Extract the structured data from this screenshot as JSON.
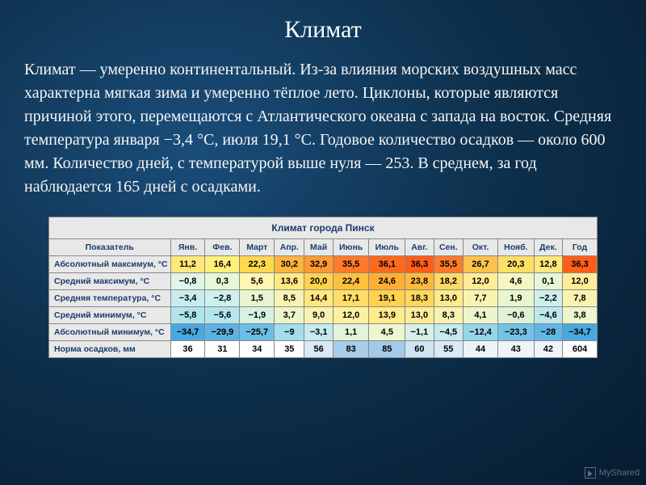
{
  "title": "Климат",
  "paragraph": "Климат — умеренно континентальный. Из-за влияния морских воздушных масс характерна мягкая зима и умеренно тёплое лето. Циклоны, которые являются причиной этого, перемещаются с Атлантического океана с запада на восток. Средняя температура января −3,4 °C, июля 19,1 °C. Годовое количество осадков — около 600 мм. Количество дней, с температурой выше нуля — 253. В среднем, за год наблюдается 165 дней с осадками.",
  "table": {
    "caption": "Климат города Пинск",
    "columns": [
      "Показатель",
      "Янв.",
      "Фев.",
      "Март",
      "Апр.",
      "Май",
      "Июнь",
      "Июль",
      "Авг.",
      "Сен.",
      "Окт.",
      "Нояб.",
      "Дек.",
      "Год"
    ],
    "rows": [
      {
        "label": "Абсолютный максимум, °C",
        "values": [
          "11,2",
          "16,4",
          "22,3",
          "30,2",
          "32,9",
          "35,5",
          "36,1",
          "36,3",
          "35,5",
          "26,7",
          "20,3",
          "12,8",
          "36,3"
        ],
        "colors": [
          "#ffe97a",
          "#fff07a",
          "#ffd94d",
          "#ffb43d",
          "#ff9a33",
          "#ff7a29",
          "#ff691f",
          "#ff5e19",
          "#ff7a29",
          "#ffc34d",
          "#ffdf66",
          "#ffe97a",
          "#ff5e19"
        ]
      },
      {
        "label": "Средний максимум, °C",
        "values": [
          "−0,8",
          "0,3",
          "5,6",
          "13,6",
          "20,0",
          "22,4",
          "24,6",
          "23,8",
          "18,2",
          "12,0",
          "4,6",
          "0,1",
          "12,0"
        ],
        "colors": [
          "#dff5e8",
          "#e6f7d8",
          "#fff7b0",
          "#ffe880",
          "#ffd14d",
          "#ffc13d",
          "#ffb033",
          "#ffb83d",
          "#ffd966",
          "#ffec99",
          "#f4f7c4",
          "#e6f7d8",
          "#ffec99"
        ]
      },
      {
        "label": "Средняя температура, °C",
        "values": [
          "−3,4",
          "−2,8",
          "1,5",
          "8,5",
          "14,4",
          "17,1",
          "19,1",
          "18,3",
          "13,0",
          "7,7",
          "1,9",
          "−2,2",
          "7,8"
        ],
        "colors": [
          "#c8edf0",
          "#cdf0ed",
          "#e8f5d0",
          "#f8f3b0",
          "#ffe880",
          "#ffdd66",
          "#ffd14d",
          "#ffd659",
          "#ffea8c",
          "#f8f3b0",
          "#e8f5d0",
          "#cdf0ed",
          "#f8f3b0"
        ]
      },
      {
        "label": "Средний минимум, °C",
        "values": [
          "−5,8",
          "−5,6",
          "−1,9",
          "3,7",
          "9,0",
          "12,0",
          "13,9",
          "13,0",
          "8,3",
          "4,1",
          "−0,6",
          "−4,6",
          "3,8"
        ],
        "colors": [
          "#b0e5ee",
          "#b3e7ee",
          "#d6f1e0",
          "#edf5cc",
          "#f8f3b0",
          "#fff0a0",
          "#ffea8c",
          "#ffec99",
          "#f8f3b0",
          "#edf5cc",
          "#ddf2d6",
          "#bde9ee",
          "#edf5cc"
        ]
      },
      {
        "label": "Абсолютный минимум, °C",
        "values": [
          "−34,7",
          "−29,9",
          "−25,7",
          "−9",
          "−3,1",
          "1,1",
          "4,5",
          "−1,1",
          "−4,5",
          "−12,4",
          "−23,3",
          "−28",
          "−34,7"
        ],
        "colors": [
          "#4aa8e0",
          "#5cb2e3",
          "#6dbde6",
          "#a5dcee",
          "#c5eaef",
          "#e3f4da",
          "#eef6cf",
          "#d6f0e5",
          "#c5eaef",
          "#96d4ec",
          "#74c2e8",
          "#62b6e4",
          "#4aa8e0"
        ]
      },
      {
        "label": "Норма осадков, мм",
        "values": [
          "36",
          "31",
          "34",
          "35",
          "56",
          "83",
          "85",
          "60",
          "55",
          "44",
          "43",
          "42",
          "604"
        ],
        "colors": [
          "#ffffff",
          "#ffffff",
          "#ffffff",
          "#ffffff",
          "#d9e9f5",
          "#a7cde9",
          "#a3cae8",
          "#d0e4f2",
          "#d9e9f5",
          "#ecf3f9",
          "#ecf3f9",
          "#eef4fa",
          "#ffffff"
        ]
      }
    ]
  },
  "watermark": "МуShared"
}
